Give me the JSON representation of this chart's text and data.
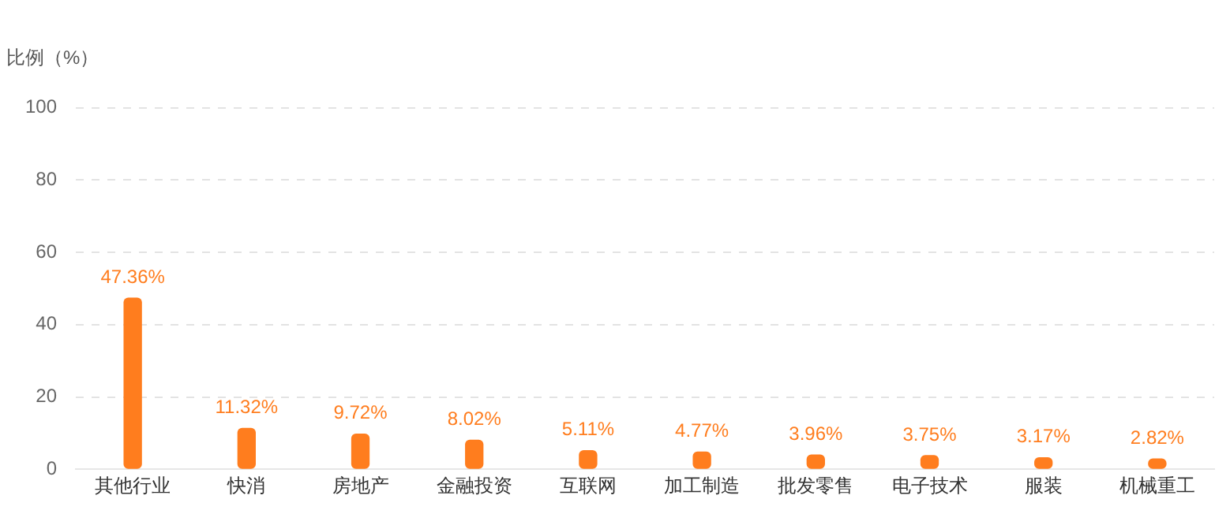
{
  "chart_data": {
    "type": "bar",
    "ylabel": "比例（%）",
    "categories": [
      "其他行业",
      "快消",
      "房地产",
      "金融投资",
      "互联网",
      "加工制造",
      "批发零售",
      "电子技术",
      "服装",
      "机械重工"
    ],
    "values": [
      47.36,
      11.32,
      9.72,
      8.02,
      5.11,
      4.77,
      3.96,
      3.75,
      3.17,
      2.82
    ],
    "value_labels": [
      "47.36%",
      "11.32%",
      "9.72%",
      "8.02%",
      "5.11%",
      "4.77%",
      "3.96%",
      "3.75%",
      "3.17%",
      "2.82%"
    ],
    "color": "#ff7d1e",
    "ylim": [
      0,
      100
    ],
    "yticks": [
      0,
      20,
      40,
      60,
      80,
      100
    ],
    "grid": "y",
    "legend": false
  }
}
